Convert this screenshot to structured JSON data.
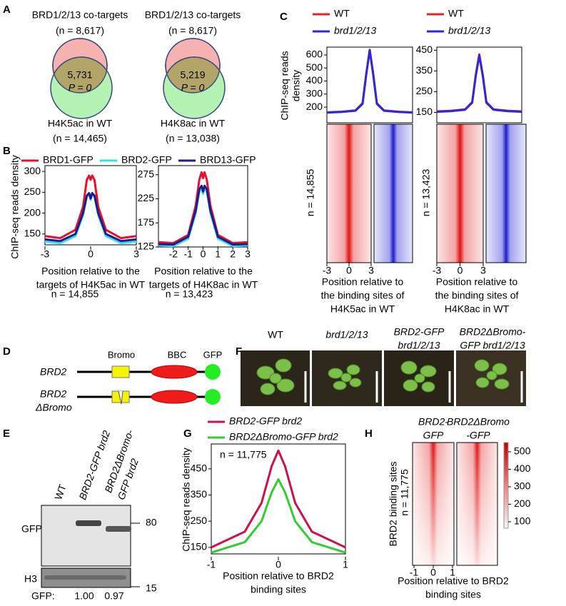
{
  "panels": {
    "A": {
      "letter": "A",
      "venns": [
        {
          "top": [
            "BRD1/2/13 co-targets",
            "(n = 8,617)"
          ],
          "overlap": [
            "5,731",
            "P = 0"
          ],
          "bottom": [
            "H4K5ac in WT",
            "(n = 14,465)"
          ]
        },
        {
          "top": [
            "BRD1/2/13 co-targets",
            "(n = 8,617)"
          ],
          "overlap": [
            "5,219",
            "P = 0"
          ],
          "bottom": [
            "H4K8ac in WT",
            "(n = 13,038)"
          ]
        }
      ]
    },
    "B": {
      "letter": "B"
    },
    "C": {
      "letter": "C"
    },
    "D": {
      "letter": "D",
      "domains": [
        "Bromo",
        "BBC",
        "GFP"
      ],
      "constructs": [
        [
          "BRD2"
        ],
        [
          "BRD2",
          "ΔBromo"
        ]
      ]
    },
    "E": {
      "letter": "E",
      "lanes": [
        [
          "WT"
        ],
        [
          "BRD2-GFP brd2"
        ],
        [
          "BRD2ΔBromo-",
          "GFP brd2"
        ]
      ],
      "blots": [
        "GFP",
        "H3"
      ],
      "markers": [
        "80",
        "15"
      ],
      "quant_label": "GFP:",
      "quant": [
        "1.00",
        "0.97"
      ]
    },
    "F": {
      "letter": "F",
      "genotypes": [
        [
          "WT"
        ],
        [
          "brd1/2/13"
        ],
        [
          "BRD2-GFP",
          "brd1/2/13"
        ],
        [
          "BRD2ΔBromo-",
          "GFP brd1/2/13"
        ]
      ]
    },
    "G": {
      "letter": "G"
    },
    "H": {
      "letter": "H",
      "columns": [
        [
          "BRD2-",
          "GFP"
        ],
        [
          "BRD2ΔBromo",
          "-GFP"
        ]
      ],
      "ylabel": "BRD2 binding sites",
      "annotation": "n = 11,775",
      "xticks": [
        -1,
        0,
        1
      ],
      "xlabel": [
        "Position relative to BRD2",
        "binding sites"
      ],
      "colorbar": {
        "lim": [
          63,
          553
        ],
        "ticks": [
          100,
          200,
          300,
          400,
          500
        ]
      }
    }
  },
  "chart_data": [
    {
      "type": "line",
      "ylabel": [
        "ChIP-seq reads density"
      ],
      "xlabel": [
        "Position relative to the",
        "targets of H4K5ac in WT"
      ],
      "annotation": "n = 14,855",
      "x": [
        -3,
        -2,
        -1,
        -0.5,
        -0.25,
        -0.1,
        0,
        0.1,
        0.25,
        0.5,
        1,
        2,
        3
      ],
      "xlim": [
        -3,
        3
      ],
      "xticks": [
        -3,
        0,
        3
      ],
      "ylim": [
        124,
        314
      ],
      "yticks": [
        150,
        200,
        250,
        300
      ],
      "series": [
        {
          "name": "BRD1-GFP",
          "color": "#e8112d",
          "values": [
            145,
            140,
            160,
            215,
            280,
            290,
            280,
            290,
            280,
            215,
            160,
            140,
            145
          ]
        },
        {
          "name": "BRD2-GFP",
          "color": "#35dff0",
          "values": [
            132,
            128,
            145,
            195,
            240,
            245,
            232,
            245,
            240,
            195,
            145,
            128,
            132
          ]
        },
        {
          "name": "BRD13-GFP",
          "color": "#1c1c8a",
          "values": [
            137,
            133,
            150,
            200,
            242,
            248,
            235,
            248,
            242,
            200,
            150,
            133,
            137
          ]
        }
      ]
    },
    {
      "type": "line",
      "xlabel": [
        "Position relative to the",
        "targets of H4K8ac in WT"
      ],
      "annotation": "n = 13,423",
      "x": [
        -3,
        -2,
        -1,
        -0.5,
        -0.25,
        -0.1,
        0,
        0.1,
        0.25,
        0.5,
        1,
        2,
        3
      ],
      "xlim": [
        -3,
        3
      ],
      "xticks": [
        -1,
        0,
        1,
        2,
        3,
        -2
      ],
      "ylim": [
        125,
        294
      ],
      "yticks": [
        125,
        175,
        225,
        275
      ],
      "series": [
        {
          "color": "#e8112d",
          "values": [
            135,
            133,
            150,
            210,
            265,
            280,
            268,
            280,
            265,
            210,
            150,
            133,
            135
          ]
        },
        {
          "color": "#35dff0",
          "values": [
            128,
            127,
            142,
            195,
            240,
            248,
            235,
            248,
            240,
            195,
            142,
            127,
            128
          ]
        },
        {
          "color": "#1c1c8a",
          "values": [
            131,
            130,
            146,
            200,
            245,
            252,
            240,
            252,
            245,
            200,
            146,
            130,
            131
          ]
        }
      ]
    },
    {
      "type": "line",
      "ylabel": [
        "ChIP-seq reads",
        "density"
      ],
      "xlabel": [
        "Position relative to",
        "the binding sites of",
        "H4K5ac in WT"
      ],
      "annotation": "n = 14,855",
      "x": [
        -3,
        -2,
        -1,
        -0.5,
        -0.25,
        0,
        0.25,
        0.5,
        1,
        2,
        3
      ],
      "xlim": [
        -3,
        3
      ],
      "xticks": [
        -3,
        0,
        3
      ],
      "ylim": [
        80,
        660
      ],
      "yticks": [
        200,
        300,
        400,
        500,
        600
      ],
      "series": [
        {
          "name": "WT",
          "color": "#e8202a",
          "values": [
            160,
            165,
            175,
            230,
            450,
            640,
            450,
            230,
            175,
            165,
            160
          ]
        },
        {
          "name": "brd1/2/13",
          "color": "#2a2ad8",
          "values": [
            158,
            163,
            172,
            225,
            445,
            635,
            445,
            225,
            172,
            163,
            158
          ]
        }
      ]
    },
    {
      "type": "line",
      "xlabel": [
        "Position relative to",
        "the binding sites of",
        "H4K8ac in WT"
      ],
      "annotation": "n = 13,423",
      "x": [
        -3,
        -2,
        -1,
        -0.5,
        -0.25,
        0,
        0.25,
        0.5,
        1,
        2,
        3
      ],
      "xlim": [
        -3,
        3
      ],
      "xticks": [
        -3,
        0,
        3
      ],
      "ylim": [
        100,
        465
      ],
      "yticks": [
        150,
        250,
        350,
        450
      ],
      "series": [
        {
          "name": "WT",
          "color": "#e8202a",
          "values": [
            155,
            158,
            165,
            200,
            330,
            430,
            330,
            200,
            165,
            158,
            155
          ]
        },
        {
          "name": "brd1/2/13",
          "color": "#2a2ad8",
          "values": [
            153,
            156,
            163,
            197,
            325,
            425,
            325,
            197,
            163,
            156,
            153
          ]
        }
      ]
    },
    {
      "type": "line",
      "ylabel": [
        "ChIP-seq reads density"
      ],
      "xlabel": [
        "Position relative to BRD2",
        "binding sites"
      ],
      "annotation": "n = 11,775",
      "x": [
        -1,
        -0.5,
        -0.25,
        -0.1,
        0,
        0.1,
        0.25,
        0.5,
        1
      ],
      "xlim": [
        -1,
        1
      ],
      "xticks": [
        -1,
        0,
        1
      ],
      "ylim": [
        125,
        545
      ],
      "yticks": [
        150,
        250,
        350,
        450
      ],
      "series": [
        {
          "name": "BRD2-GFP brd2",
          "color": "#d0104a",
          "values": [
            150,
            210,
            320,
            460,
            520,
            460,
            320,
            210,
            150
          ]
        },
        {
          "name": "BRD2ΔBromo-GFP brd2",
          "color": "#33cc33",
          "values": [
            130,
            170,
            250,
            360,
            410,
            360,
            250,
            170,
            130
          ]
        }
      ]
    }
  ]
}
